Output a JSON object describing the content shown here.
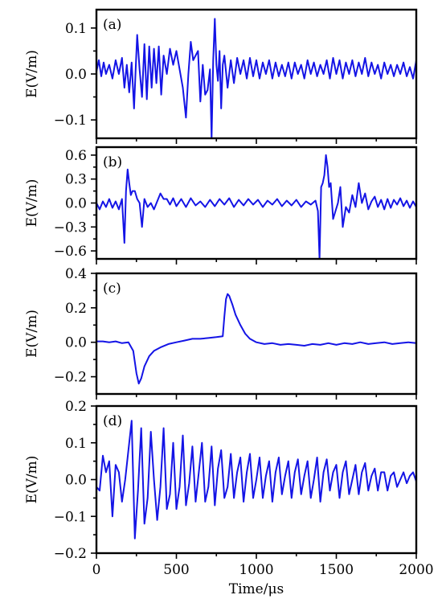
{
  "chart_data": [
    {
      "type": "line",
      "panel_label": "(a)",
      "xlabel": "",
      "ylabel": "E(V/m)",
      "xlim": [
        0,
        2000
      ],
      "ylim": [
        -0.14,
        0.14
      ],
      "yticks": [
        -0.1,
        0.0,
        0.1
      ],
      "ytick_labels": [
        "−0.1",
        "0.0",
        "0.1"
      ],
      "xticks": [
        0,
        500,
        1000,
        1500,
        2000
      ],
      "xtick_labels": [],
      "color": "#1414e6",
      "series": [
        {
          "x": [
            0,
            15,
            30,
            45,
            60,
            80,
            100,
            120,
            140,
            160,
            175,
            190,
            205,
            220,
            235,
            245,
            255,
            270,
            285,
            300,
            315,
            330,
            345,
            360,
            375,
            390,
            405,
            420,
            440,
            460,
            480,
            500,
            520,
            540,
            560,
            575,
            590,
            605,
            620,
            635,
            650,
            665,
            680,
            695,
            710,
            720,
            730,
            740,
            750,
            760,
            770,
            780,
            790,
            800,
            820,
            840,
            860,
            880,
            900,
            920,
            940,
            960,
            980,
            1000,
            1020,
            1040,
            1060,
            1080,
            1100,
            1120,
            1140,
            1160,
            1180,
            1200,
            1220,
            1240,
            1260,
            1280,
            1300,
            1320,
            1340,
            1360,
            1380,
            1400,
            1420,
            1440,
            1460,
            1480,
            1500,
            1520,
            1540,
            1560,
            1580,
            1600,
            1620,
            1640,
            1660,
            1680,
            1700,
            1720,
            1740,
            1760,
            1780,
            1800,
            1820,
            1840,
            1860,
            1880,
            1900,
            1920,
            1940,
            1960,
            1980,
            2000
          ],
          "y": [
            0.005,
            0.03,
            -0.005,
            0.025,
            0.0,
            0.02,
            -0.01,
            0.03,
            0.0,
            0.035,
            -0.03,
            0.02,
            -0.04,
            0.025,
            -0.075,
            0.01,
            0.085,
            0.01,
            -0.05,
            0.065,
            -0.055,
            0.06,
            -0.03,
            0.055,
            -0.02,
            0.06,
            -0.045,
            0.04,
            0.0,
            0.055,
            0.02,
            0.05,
            0.01,
            -0.03,
            -0.095,
            0.0,
            0.07,
            0.03,
            0.04,
            0.05,
            -0.06,
            0.02,
            -0.045,
            -0.035,
            0.01,
            -0.14,
            0.03,
            0.12,
            0.02,
            -0.015,
            0.05,
            -0.075,
            0.02,
            0.04,
            -0.03,
            0.03,
            -0.02,
            0.035,
            0.0,
            0.03,
            -0.01,
            0.035,
            -0.005,
            0.03,
            -0.01,
            0.025,
            0.0,
            0.03,
            -0.01,
            0.025,
            -0.005,
            0.02,
            -0.005,
            0.025,
            -0.01,
            0.025,
            0.0,
            0.02,
            -0.01,
            0.03,
            0.0,
            0.025,
            -0.005,
            0.02,
            0.0,
            0.03,
            -0.01,
            0.035,
            0.0,
            0.03,
            -0.01,
            0.025,
            0.0,
            0.03,
            -0.005,
            0.025,
            0.0,
            0.035,
            -0.005,
            0.025,
            0.0,
            0.02,
            -0.01,
            0.025,
            0.0,
            0.02,
            -0.005,
            0.02,
            0.0,
            0.025,
            -0.005,
            0.015,
            -0.01,
            0.03
          ]
        }
      ]
    },
    {
      "type": "line",
      "panel_label": "(b)",
      "xlabel": "",
      "ylabel": "E(V/m)",
      "xlim": [
        0,
        2000
      ],
      "ylim": [
        -0.7,
        0.7
      ],
      "yticks": [
        -0.6,
        -0.3,
        0.0,
        0.3,
        0.6
      ],
      "ytick_labels": [
        "−0.6",
        "−0.3",
        "0.0",
        "0.3",
        "0.6"
      ],
      "xticks": [
        0,
        500,
        1000,
        1500,
        2000
      ],
      "xtick_labels": [],
      "color": "#1414e6",
      "series": [
        {
          "x": [
            0,
            20,
            40,
            60,
            80,
            100,
            120,
            140,
            160,
            175,
            185,
            195,
            205,
            215,
            225,
            240,
            255,
            270,
            285,
            300,
            320,
            340,
            360,
            380,
            400,
            420,
            440,
            460,
            480,
            500,
            530,
            560,
            590,
            620,
            650,
            680,
            710,
            740,
            770,
            800,
            830,
            860,
            890,
            920,
            950,
            980,
            1010,
            1040,
            1070,
            1100,
            1130,
            1160,
            1190,
            1220,
            1250,
            1280,
            1310,
            1340,
            1370,
            1385,
            1395,
            1405,
            1415,
            1425,
            1435,
            1445,
            1455,
            1465,
            1480,
            1495,
            1510,
            1525,
            1540,
            1560,
            1580,
            1600,
            1620,
            1640,
            1660,
            1680,
            1700,
            1720,
            1740,
            1760,
            1780,
            1800,
            1820,
            1840,
            1860,
            1880,
            1900,
            1920,
            1940,
            1960,
            1980,
            2000
          ],
          "y": [
            0.0,
            -0.08,
            0.02,
            -0.05,
            0.05,
            -0.06,
            0.02,
            -0.08,
            0.05,
            -0.5,
            0.15,
            0.42,
            0.25,
            0.1,
            0.15,
            0.15,
            0.05,
            0.0,
            -0.3,
            0.05,
            -0.05,
            0.0,
            -0.08,
            0.02,
            0.12,
            0.05,
            0.05,
            -0.02,
            0.06,
            -0.04,
            0.05,
            -0.05,
            0.06,
            -0.03,
            0.02,
            -0.05,
            0.04,
            -0.04,
            0.05,
            -0.02,
            0.06,
            -0.05,
            0.04,
            -0.03,
            0.05,
            -0.02,
            0.04,
            -0.05,
            0.03,
            -0.02,
            0.05,
            -0.04,
            0.03,
            -0.03,
            0.04,
            -0.05,
            0.02,
            -0.02,
            0.03,
            -0.1,
            -0.7,
            0.2,
            0.25,
            0.35,
            0.6,
            0.45,
            0.2,
            0.25,
            -0.2,
            -0.1,
            0.0,
            0.2,
            -0.3,
            -0.05,
            -0.12,
            0.1,
            -0.05,
            0.25,
            0.0,
            0.12,
            -0.08,
            0.02,
            0.08,
            -0.05,
            0.04,
            -0.08,
            0.05,
            -0.06,
            0.04,
            -0.02,
            0.06,
            -0.04,
            0.03,
            -0.06,
            0.02,
            -0.05
          ]
        }
      ]
    },
    {
      "type": "line",
      "panel_label": "(c)",
      "xlabel": "",
      "ylabel": "E(V/m)",
      "xlim": [
        0,
        2000
      ],
      "ylim": [
        -0.3,
        0.4
      ],
      "yticks": [
        -0.2,
        0.0,
        0.2,
        0.4
      ],
      "ytick_labels": [
        "−0.2",
        "0.0",
        "0.2",
        "0.4"
      ],
      "xticks": [
        0,
        500,
        1000,
        1500,
        2000
      ],
      "xtick_labels": [],
      "color": "#1414e6",
      "series": [
        {
          "x": [
            0,
            40,
            80,
            120,
            160,
            200,
            230,
            250,
            265,
            280,
            300,
            330,
            360,
            400,
            450,
            500,
            550,
            600,
            650,
            700,
            750,
            790,
            800,
            810,
            820,
            830,
            850,
            870,
            900,
            930,
            960,
            1000,
            1050,
            1100,
            1150,
            1200,
            1250,
            1300,
            1350,
            1400,
            1450,
            1500,
            1550,
            1600,
            1650,
            1700,
            1750,
            1800,
            1850,
            1900,
            1950,
            2000
          ],
          "y": [
            0.005,
            0.005,
            0.0,
            0.005,
            -0.005,
            0.0,
            -0.05,
            -0.18,
            -0.24,
            -0.21,
            -0.14,
            -0.08,
            -0.05,
            -0.03,
            -0.01,
            0.0,
            0.01,
            0.02,
            0.02,
            0.025,
            0.03,
            0.035,
            0.15,
            0.25,
            0.28,
            0.27,
            0.22,
            0.16,
            0.1,
            0.05,
            0.02,
            0.0,
            -0.01,
            -0.005,
            -0.015,
            -0.01,
            -0.015,
            -0.02,
            -0.01,
            -0.015,
            -0.005,
            -0.015,
            -0.005,
            -0.01,
            0.0,
            -0.01,
            -0.005,
            0.0,
            -0.01,
            -0.005,
            0.0,
            -0.005
          ]
        }
      ]
    },
    {
      "type": "line",
      "panel_label": "(d)",
      "xlabel": "Time/μs",
      "ylabel": "E(V/m)",
      "xlim": [
        0,
        2000
      ],
      "ylim": [
        -0.2,
        0.2
      ],
      "yticks": [
        -0.2,
        -0.1,
        0.0,
        0.1,
        0.2
      ],
      "ytick_labels": [
        "−0.2",
        "−0.1",
        "0.0",
        "0.1",
        "0.2"
      ],
      "xticks": [
        0,
        500,
        1000,
        1500,
        2000
      ],
      "xtick_labels": [
        "0",
        "500",
        "1000",
        "1500",
        "2000"
      ],
      "color": "#1414e6",
      "series": [
        {
          "x": [
            0,
            20,
            40,
            60,
            80,
            100,
            120,
            140,
            160,
            180,
            200,
            220,
            240,
            260,
            280,
            300,
            320,
            340,
            360,
            380,
            400,
            420,
            440,
            460,
            480,
            500,
            520,
            540,
            560,
            580,
            600,
            620,
            640,
            660,
            680,
            700,
            720,
            740,
            760,
            780,
            800,
            820,
            840,
            860,
            880,
            900,
            920,
            940,
            960,
            980,
            1000,
            1020,
            1040,
            1060,
            1080,
            1100,
            1120,
            1140,
            1160,
            1180,
            1200,
            1220,
            1240,
            1260,
            1280,
            1300,
            1320,
            1340,
            1360,
            1380,
            1400,
            1420,
            1440,
            1460,
            1480,
            1500,
            1520,
            1540,
            1560,
            1580,
            1600,
            1620,
            1640,
            1660,
            1680,
            1700,
            1720,
            1740,
            1760,
            1780,
            1800,
            1820,
            1840,
            1860,
            1880,
            1900,
            1920,
            1940,
            1960,
            1980,
            2000
          ],
          "y": [
            -0.02,
            -0.03,
            0.065,
            0.02,
            0.05,
            -0.1,
            0.04,
            0.02,
            -0.06,
            0.0,
            0.08,
            0.16,
            -0.16,
            -0.03,
            0.14,
            -0.12,
            -0.05,
            0.13,
            0.0,
            -0.11,
            -0.02,
            0.14,
            -0.08,
            -0.04,
            0.1,
            -0.08,
            -0.02,
            0.12,
            -0.07,
            -0.01,
            0.09,
            -0.06,
            0.02,
            0.1,
            -0.06,
            -0.02,
            0.09,
            -0.07,
            0.03,
            0.08,
            -0.05,
            -0.02,
            0.07,
            -0.05,
            0.02,
            0.06,
            -0.06,
            0.02,
            0.07,
            -0.05,
            0.0,
            0.06,
            -0.05,
            0.01,
            0.05,
            -0.06,
            0.02,
            0.06,
            -0.04,
            0.01,
            0.05,
            -0.05,
            0.02,
            0.055,
            -0.04,
            0.01,
            0.05,
            -0.05,
            0.0,
            0.06,
            -0.06,
            0.02,
            0.055,
            -0.03,
            0.02,
            0.04,
            -0.05,
            0.02,
            0.05,
            -0.04,
            0.0,
            0.04,
            -0.04,
            0.02,
            0.045,
            -0.03,
            0.01,
            0.03,
            -0.03,
            0.02,
            0.02,
            -0.03,
            0.01,
            0.02,
            -0.02,
            0.0,
            0.02,
            -0.01,
            0.01,
            0.02,
            -0.005
          ]
        }
      ]
    }
  ]
}
